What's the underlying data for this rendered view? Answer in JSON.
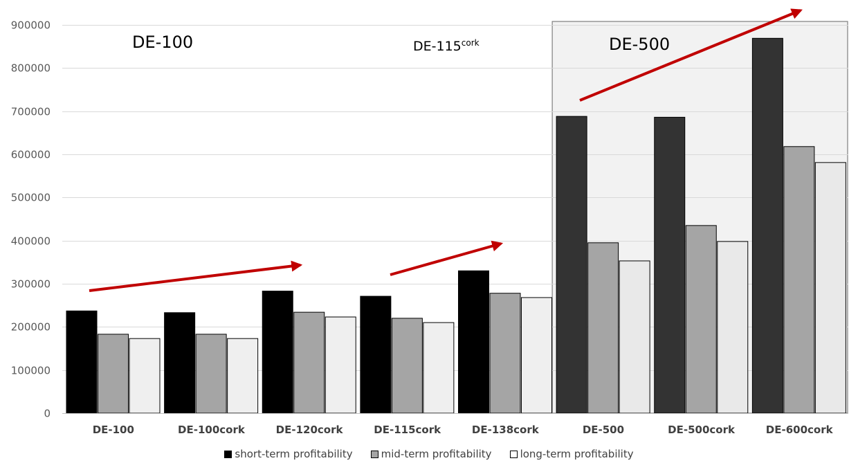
{
  "chart_data": {
    "type": "bar",
    "categories": [
      "DE-100",
      "DE-100cork",
      "DE-120cork",
      "DE-115cork",
      "DE-138cork",
      "DE-500",
      "DE-500cork",
      "DE-600cork"
    ],
    "series": [
      {
        "name": "short-term profitability",
        "values": [
          237000,
          233000,
          283000,
          271000,
          330000,
          688000,
          686000,
          869000
        ],
        "color": "#000000",
        "highlight_color": "#333333"
      },
      {
        "name": "mid-term profitability",
        "values": [
          183000,
          183000,
          234000,
          220000,
          278000,
          395000,
          435000,
          618000
        ],
        "color": "#a5a5a5",
        "highlight_color": "#a5a5a5"
      },
      {
        "name": "long-term profitability",
        "values": [
          173000,
          173000,
          223000,
          210000,
          268000,
          353000,
          398000,
          581000
        ],
        "color": "#efefef",
        "highlight_color": "#e9e9e9"
      }
    ],
    "ylim": [
      0,
      900000
    ],
    "yticks": [
      "0",
      "100000",
      "200000",
      "300000",
      "400000",
      "500000",
      "600000",
      "700000",
      "800000",
      "900000"
    ],
    "grid": true,
    "legend_position": "bottom",
    "annotations": [
      {
        "text": "DE-100"
      },
      {
        "text": "DE-115",
        "superscript": "cork"
      },
      {
        "text": "DE-500"
      }
    ],
    "highlight_box": {
      "from_category": "DE-500",
      "to_category": "DE-600cork",
      "fill": "#f2f2f2"
    },
    "arrow_color": "#c00000",
    "gridline_color": "#d9d9d9"
  }
}
